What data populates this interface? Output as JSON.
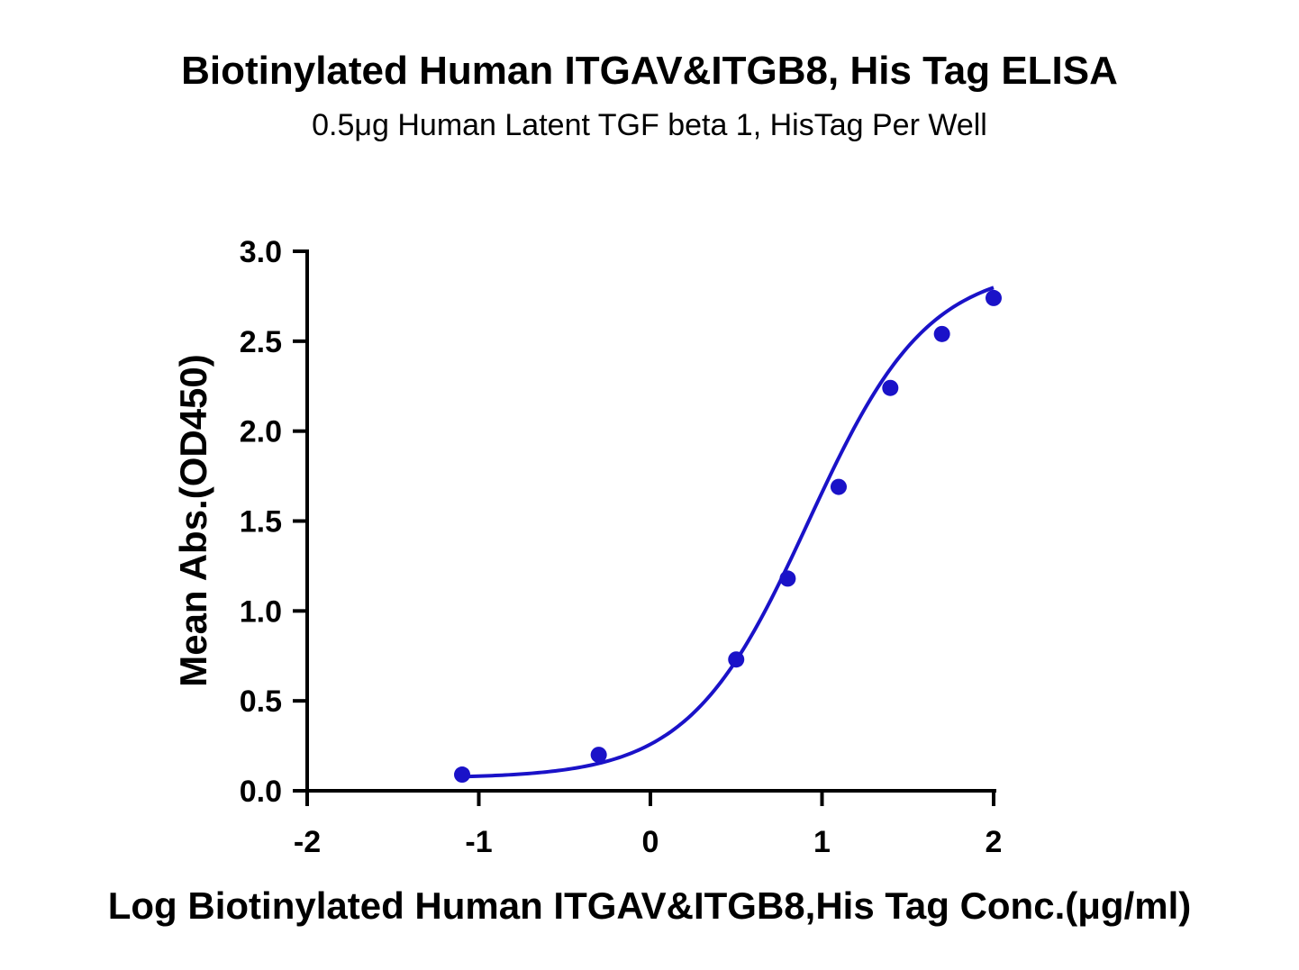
{
  "chart_data": {
    "type": "scatter",
    "title": "Biotinylated Human ITGAV&ITGB8, His Tag ELISA",
    "subtitle": "0.5μg Human Latent TGF beta 1, HisTag Per Well",
    "xlabel": "Log Biotinylated Human ITGAV&ITGB8,His Tag Conc.(μg/ml)",
    "ylabel": "Mean Abs.(OD450)",
    "xlim": [
      -2,
      2
    ],
    "ylim": [
      0,
      3
    ],
    "x_ticks": [
      -2,
      -1,
      0,
      1,
      2
    ],
    "x_tick_labels": [
      "-2",
      "-1",
      "0",
      "1",
      "2"
    ],
    "y_ticks": [
      0,
      0.5,
      1,
      1.5,
      2,
      2.5,
      3
    ],
    "y_tick_labels": [
      "0.0",
      "0.5",
      "1.0",
      "1.5",
      "2.0",
      "2.5",
      "3.0"
    ],
    "grid": false,
    "legend": "none",
    "series": [
      {
        "color": "#1a12c8",
        "marker": "circle",
        "fit": "four-parameter logistic curve",
        "x": [
          -1.097,
          -0.301,
          0.5,
          0.8,
          1.097,
          1.398,
          1.699,
          2.0
        ],
        "y": [
          0.09,
          0.2,
          0.73,
          1.18,
          1.69,
          2.24,
          2.54,
          2.74
        ]
      }
    ],
    "fit_curve": {
      "bottom": 0.07,
      "top": 2.92,
      "log_ec50": 0.92,
      "hill_slope": 1.25
    }
  }
}
